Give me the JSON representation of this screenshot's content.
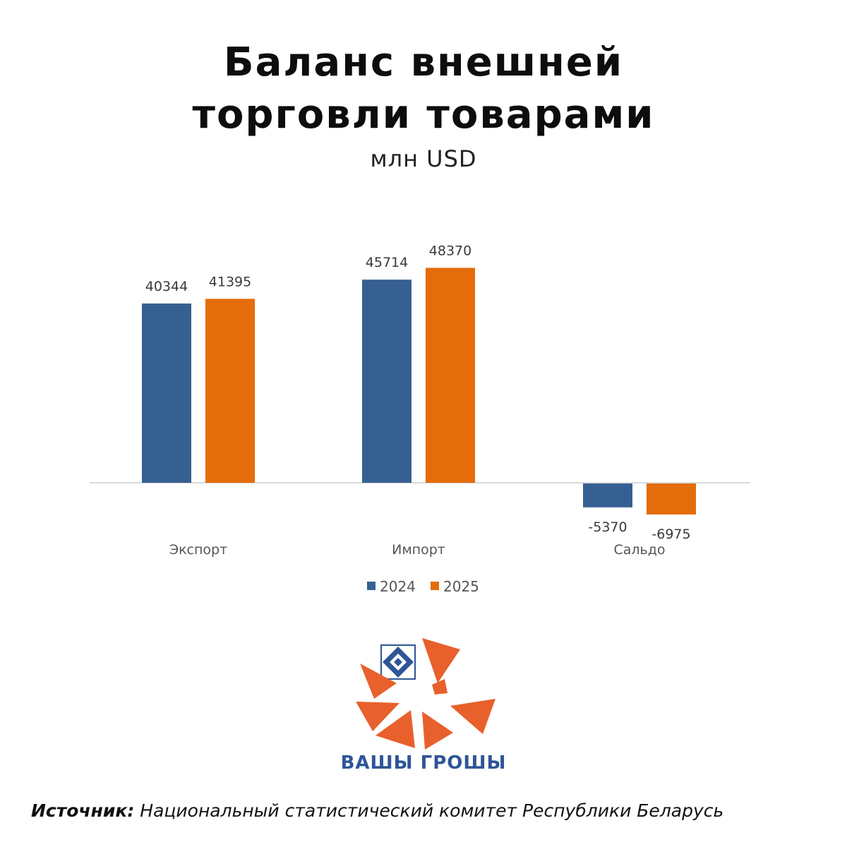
{
  "header": {
    "title_line1": "Баланс внешней",
    "title_line2": "торговли товарами",
    "unit": "млн USD"
  },
  "chart_data": {
    "type": "bar",
    "title": "Баланс внешней торговли товарами",
    "ylabel": "млн USD",
    "categories": [
      "Экспорт",
      "Импорт",
      "Сальдо"
    ],
    "series": [
      {
        "name": "2024",
        "values": [
          40344,
          45714,
          -5370
        ],
        "color": "#376092"
      },
      {
        "name": "2025",
        "values": [
          41395,
          48370,
          -6975
        ],
        "color": "#e46c0a"
      }
    ],
    "legend": "bottom",
    "grid": false
  },
  "logo": {
    "name": "ВАШЫ ГРОШЫ",
    "color": "#e8602c"
  },
  "source": {
    "label": "Источник:",
    "text": "Национальный статистический комитет Республики Беларусь"
  }
}
